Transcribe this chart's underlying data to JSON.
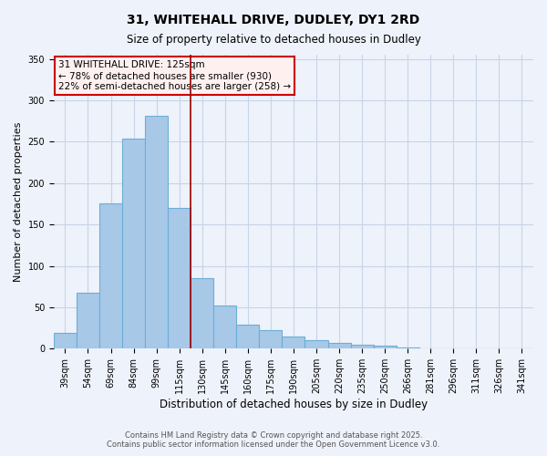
{
  "title": "31, WHITEHALL DRIVE, DUDLEY, DY1 2RD",
  "subtitle": "Size of property relative to detached houses in Dudley",
  "xlabel": "Distribution of detached houses by size in Dudley",
  "ylabel": "Number of detached properties",
  "categories": [
    "39sqm",
    "54sqm",
    "69sqm",
    "84sqm",
    "99sqm",
    "115sqm",
    "130sqm",
    "145sqm",
    "160sqm",
    "175sqm",
    "190sqm",
    "205sqm",
    "220sqm",
    "235sqm",
    "250sqm",
    "266sqm",
    "281sqm",
    "296sqm",
    "311sqm",
    "326sqm",
    "341sqm"
  ],
  "values": [
    19,
    68,
    176,
    254,
    281,
    170,
    85,
    52,
    29,
    22,
    15,
    10,
    7,
    5,
    4,
    1,
    0,
    0,
    0,
    0,
    0
  ],
  "bar_color": "#a8c8e8",
  "bar_edge_color": "#6baed6",
  "grid_color": "#c8d4e8",
  "bg_color": "#eef2fa",
  "vline_x": 5.5,
  "vline_color": "#990000",
  "annotation_text": "31 WHITEHALL DRIVE: 125sqm\n← 78% of detached houses are smaller (930)\n22% of semi-detached houses are larger (258) →",
  "annotation_box_color": "#fff0f0",
  "annotation_border_color": "#cc0000",
  "footer_line1": "Contains HM Land Registry data © Crown copyright and database right 2025.",
  "footer_line2": "Contains public sector information licensed under the Open Government Licence v3.0.",
  "ylim": [
    0,
    355
  ],
  "yticks": [
    0,
    50,
    100,
    150,
    200,
    250,
    300,
    350
  ],
  "title_fontsize": 10,
  "subtitle_fontsize": 8.5,
  "ylabel_fontsize": 8,
  "xlabel_fontsize": 8.5,
  "tick_fontsize": 7,
  "annotation_fontsize": 7.5,
  "footer_fontsize": 6
}
